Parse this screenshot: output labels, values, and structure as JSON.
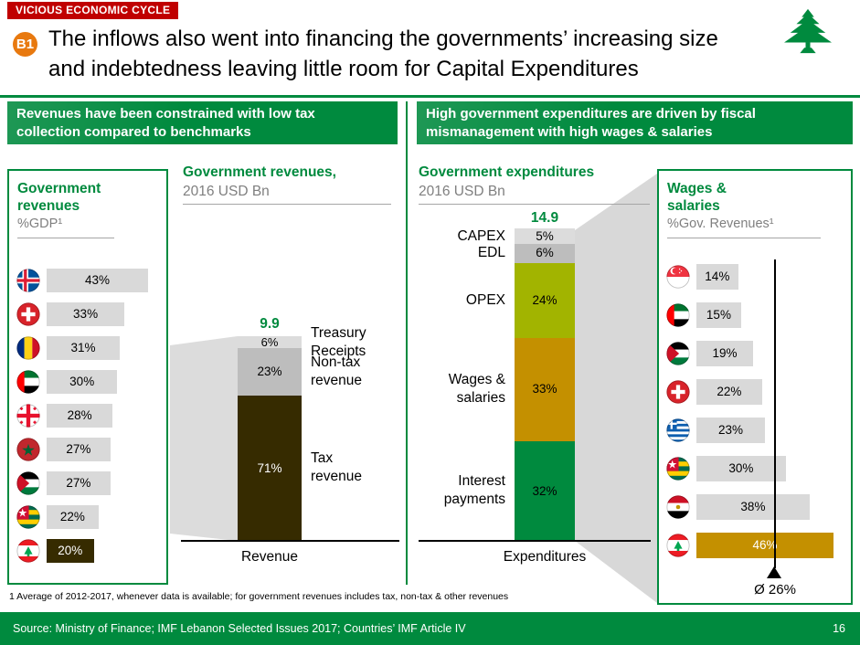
{
  "header": {
    "tag": "VICIOUS ECONOMIC CYCLE",
    "badge": "B1",
    "title_line1": "The inflows also went into financing the governments’ increasing size",
    "title_line2": "and indebtedness leaving little room for Capital Expenditures"
  },
  "banners": {
    "left_line1": "Revenues have been constrained with low tax",
    "left_line2": "collection compared to benchmarks",
    "right_line1": "High government expenditures are driven by fiscal",
    "right_line2": "mismanagement with high wages & salaries"
  },
  "left_panel": {
    "title_line1": "Government",
    "title_line2": "revenues",
    "subtitle": "%GDP¹",
    "bar_color": "#D9D9D9",
    "highlight_color": "#362B00"
  },
  "right_panel": {
    "title_line1": "Wages &",
    "title_line2": "salaries",
    "subtitle": "%Gov. Revenues¹",
    "avg_label": "Ø 26%",
    "bar_color": "#D9D9D9",
    "highlight_color": "#C49000"
  },
  "mid_left": {
    "title": "Government revenues,",
    "subtitle": "2016 USD Bn",
    "total_label": "9.9",
    "axis_label": "Revenue",
    "side_labels": [
      [
        "Treasury",
        "Receipts"
      ],
      [
        "Non-tax",
        "revenue"
      ],
      [
        "Tax",
        "revenue"
      ]
    ]
  },
  "mid_right": {
    "title": "Government expenditures",
    "subtitle": "2016 USD Bn",
    "total_label": "14.9",
    "axis_label": "Expenditures",
    "side_labels": [
      [
        "CAPEX"
      ],
      [
        "EDL"
      ],
      [
        "OPEX"
      ],
      [
        "Wages &",
        "salaries"
      ],
      [
        "Interest",
        "payments"
      ]
    ]
  },
  "footnote": "1 Average of 2012-2017, whenever data is available; for government revenues includes tax, non-tax & other revenues",
  "footer": {
    "source": "Source: Ministry of Finance; IMF Lebanon Selected Issues 2017; Countries’ IMF Article IV",
    "page": "16"
  },
  "colors": {
    "green": "#008A3E",
    "red": "#C00000",
    "orange": "#E8790F",
    "gold": "#C49000",
    "olive": "#A2B400",
    "dark_brown": "#362B00",
    "gray_light": "#DCDCDC",
    "gray_mid": "#BDBDBD"
  },
  "chart_data": [
    {
      "type": "bar",
      "orientation": "horizontal",
      "title": "Government revenues %GDP¹",
      "categories": [
        "Iceland",
        "Switzerland",
        "Romania",
        "UAE",
        "Georgia",
        "Morocco",
        "Jordan",
        "Togo",
        "Lebanon"
      ],
      "values": [
        43,
        33,
        31,
        30,
        28,
        27,
        27,
        22,
        20
      ],
      "unit": "%",
      "highlight": "Lebanon"
    },
    {
      "type": "bar",
      "stacked": true,
      "title": "Government revenues, 2016 USD Bn",
      "total": 9.9,
      "categories": [
        "Revenue"
      ],
      "series": [
        {
          "name": "Treasury Receipts",
          "values": [
            6
          ]
        },
        {
          "name": "Non-tax revenue",
          "values": [
            23
          ]
        },
        {
          "name": "Tax revenue",
          "values": [
            71
          ]
        }
      ],
      "unit": "%",
      "colors": [
        "#DCDCDC",
        "#BDBDBD",
        "#362B00"
      ],
      "text_colors": [
        "#000000",
        "#000000",
        "#FFFFFF"
      ]
    },
    {
      "type": "bar",
      "stacked": true,
      "title": "Government expenditures 2016 USD Bn",
      "total": 14.9,
      "categories": [
        "Expenditures"
      ],
      "series": [
        {
          "name": "CAPEX",
          "values": [
            5
          ]
        },
        {
          "name": "EDL",
          "values": [
            6
          ]
        },
        {
          "name": "OPEX",
          "values": [
            24
          ]
        },
        {
          "name": "Wages & salaries",
          "values": [
            33
          ]
        },
        {
          "name": "Interest payments",
          "values": [
            32
          ]
        }
      ],
      "unit": "%",
      "colors": [
        "#DCDCDC",
        "#BDBDBD",
        "#A2B400",
        "#C49000",
        "#008A3E"
      ],
      "text_colors": [
        "#000000",
        "#000000",
        "#000000",
        "#000000",
        "#000000"
      ]
    },
    {
      "type": "bar",
      "orientation": "horizontal",
      "title": "Wages & salaries %Gov. Revenues¹",
      "categories": [
        "Singapore",
        "UAE",
        "Jordan",
        "Switzerland",
        "Greece",
        "Togo",
        "Egypt",
        "Lebanon"
      ],
      "values": [
        14,
        15,
        19,
        22,
        23,
        30,
        38,
        46
      ],
      "average": 26,
      "unit": "%",
      "highlight": "Lebanon"
    }
  ]
}
